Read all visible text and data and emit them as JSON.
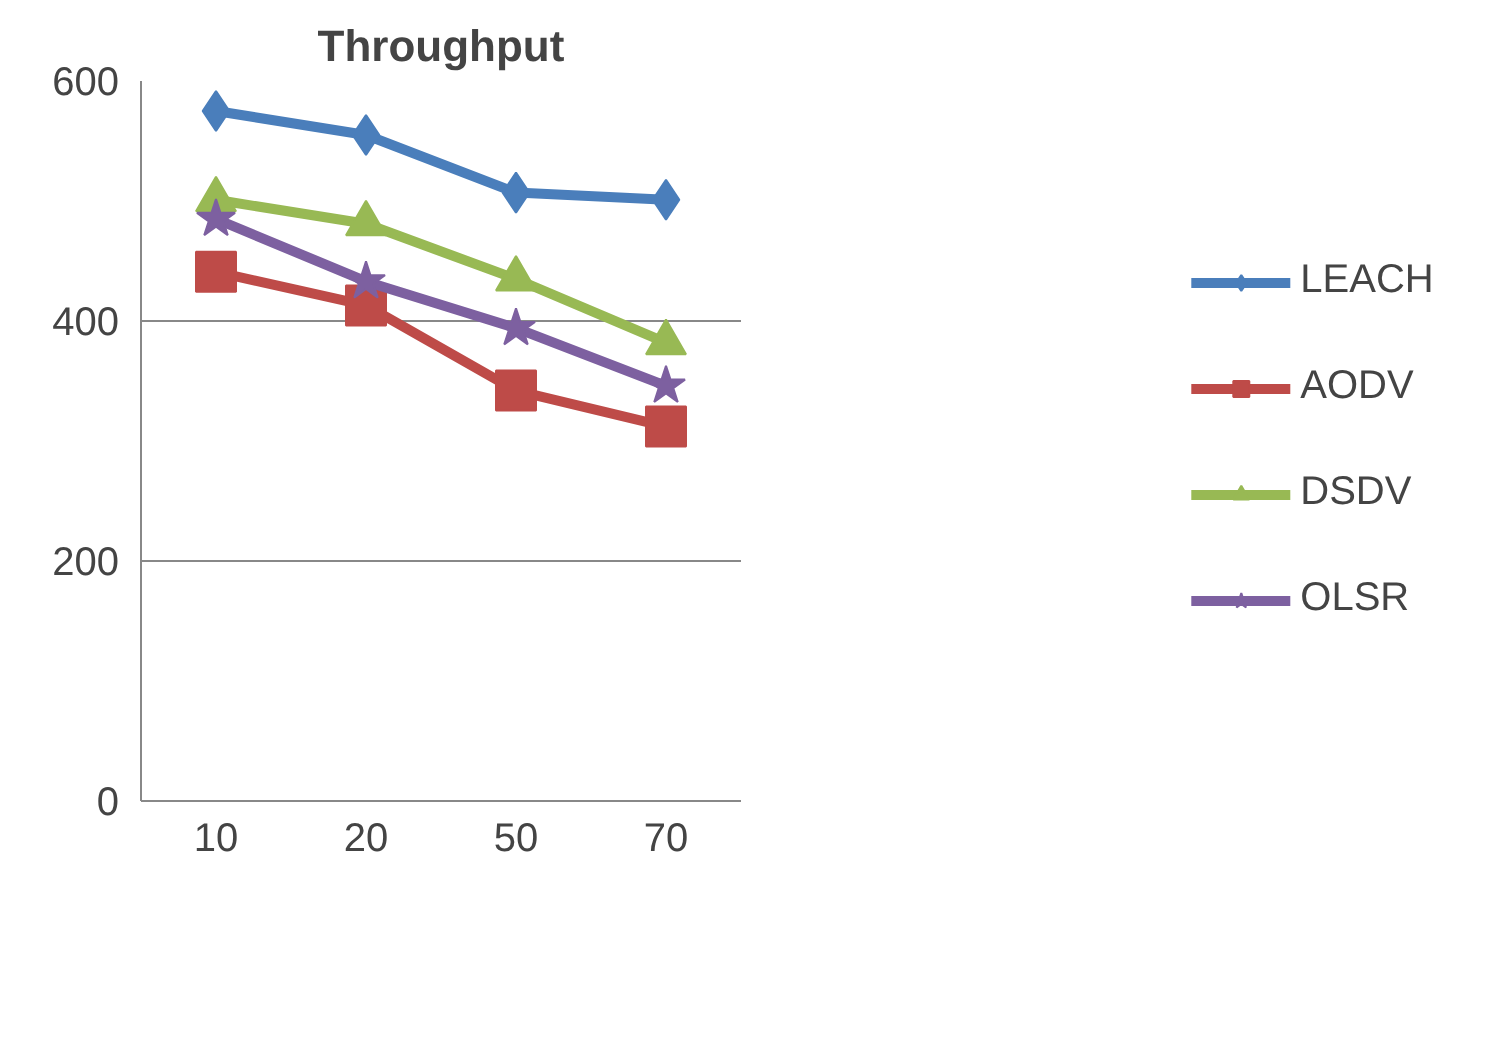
{
  "chart_data": {
    "type": "line",
    "title": "Throughput",
    "categories": [
      "10",
      "20",
      "50",
      "70"
    ],
    "series": [
      {
        "name": "LEACH",
        "color": "#4a7ebb",
        "marker": "diamond",
        "values": [
          575,
          555,
          507,
          501
        ]
      },
      {
        "name": "AODV",
        "color": "#be4b48",
        "marker": "square",
        "values": [
          441,
          413,
          342,
          312
        ]
      },
      {
        "name": "DSDV",
        "color": "#98b954",
        "marker": "triangle",
        "values": [
          501,
          481,
          435,
          382
        ]
      },
      {
        "name": "OLSR",
        "color": "#7d60a0",
        "marker": "star",
        "values": [
          485,
          433,
          394,
          346
        ]
      }
    ],
    "ylim": [
      0,
      600
    ],
    "yticks": [
      0,
      200,
      400,
      600
    ],
    "grid": "y",
    "legend": "right",
    "line_style": "solid"
  }
}
